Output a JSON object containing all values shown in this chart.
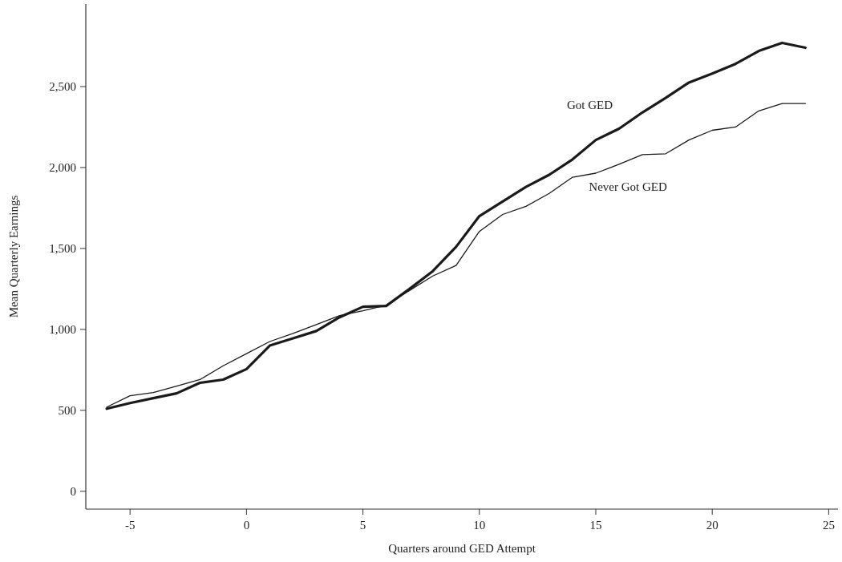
{
  "chart_data": {
    "type": "line",
    "xlabel": "Quarters around GED Attempt",
    "ylabel": "Mean Quarterly Earnings",
    "x": [
      -6,
      -5,
      -4,
      -3,
      -2,
      -1,
      0,
      1,
      2,
      3,
      4,
      5,
      6,
      7,
      8,
      9,
      10,
      11,
      12,
      13,
      14,
      15,
      16,
      17,
      18,
      19,
      20,
      21,
      22,
      23,
      24
    ],
    "series": [
      {
        "name": "Got GED",
        "color": "#1a1a1a",
        "values": [
          510,
          545,
          575,
          605,
          670,
          690,
          755,
          900,
          945,
          990,
          1075,
          1140,
          1145,
          1250,
          1360,
          1510,
          1700,
          1790,
          1880,
          1955,
          2050,
          2170,
          2240,
          2340,
          2430,
          2525,
          2580,
          2640,
          2720,
          2770,
          2740
        ]
      },
      {
        "name": "Never Got GED",
        "color": "#1a1a1a",
        "values": [
          520,
          590,
          610,
          650,
          690,
          775,
          850,
          925,
          975,
          1030,
          1085,
          1115,
          1150,
          1240,
          1330,
          1395,
          1605,
          1710,
          1760,
          1840,
          1940,
          1965,
          2020,
          2080,
          2085,
          2170,
          2230,
          2250,
          2350,
          2395,
          2395
        ]
      }
    ],
    "xlim": [
      -6.9,
      25.4
    ],
    "xticks": [
      {
        "value": -5,
        "label": "-5"
      },
      0,
      5,
      10,
      15,
      20,
      25
    ],
    "ylim": [
      -110,
      3010
    ],
    "yticks": [
      0,
      {
        "value": 500,
        "label": "500"
      },
      {
        "value": 1000,
        "label": "1,000"
      },
      {
        "value": 1500,
        "label": "1,500"
      },
      {
        "value": 2000,
        "label": "2,000"
      },
      {
        "value": 2500,
        "label": "2,500"
      }
    ],
    "grid": false,
    "marker": "none",
    "line_style": "solid"
  }
}
